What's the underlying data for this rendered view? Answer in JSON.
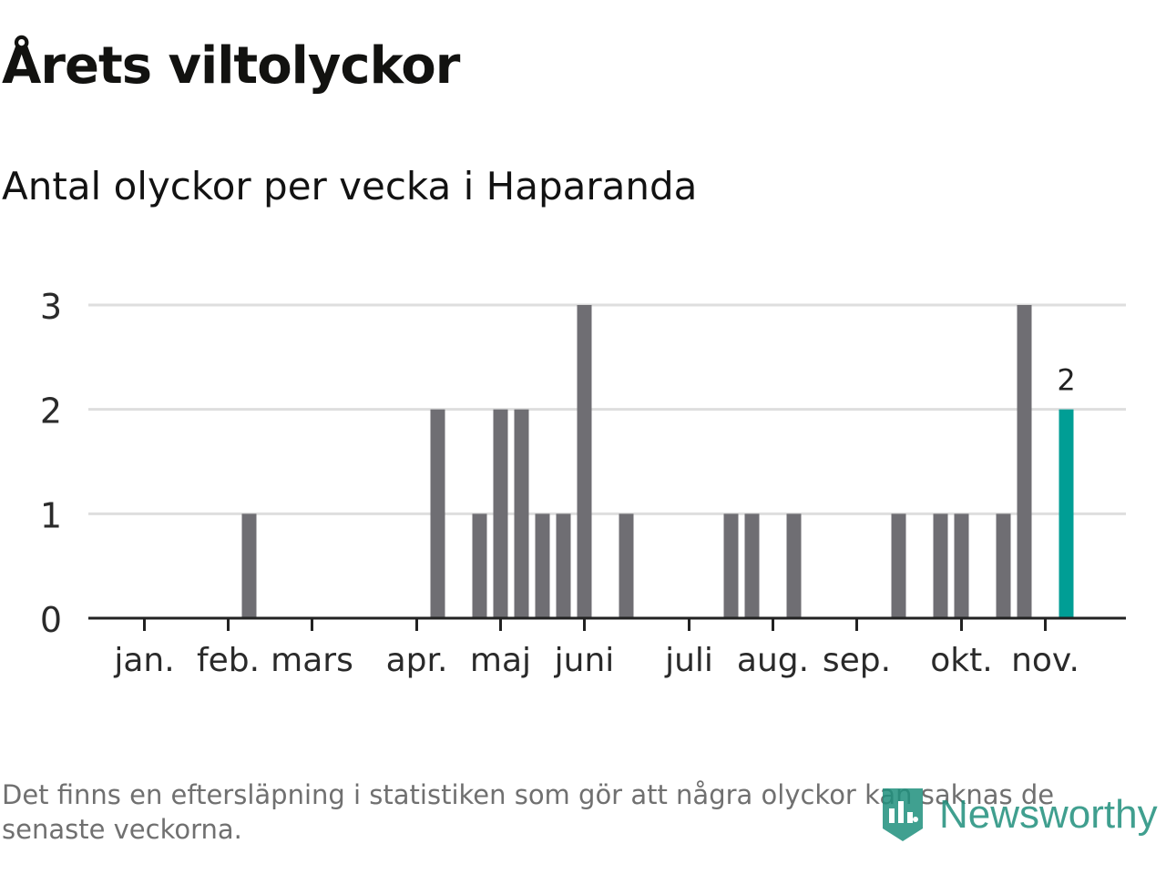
{
  "title": "Årets viltolyckor",
  "subtitle": "Antal olyckor per vecka i Haparanda",
  "footnote": "Det finns en eftersläpning i statistiken som gör att några olyckor kan saknas de senaste veckorna.",
  "brand": {
    "name": "Newsworthy",
    "icon": "newsworthy-bar-chart-logo-icon",
    "color": "#1f8f7c"
  },
  "colors": {
    "bar": "#6f6e73",
    "highlight": "#009e95",
    "grid": "#dedede",
    "axis": "#222222"
  },
  "chart_data": {
    "type": "bar",
    "title": "Årets viltolyckor",
    "subtitle": "Antal olyckor per vecka i Haparanda",
    "xlabel": "",
    "ylabel": "",
    "ylim": [
      0,
      3
    ],
    "yticks": [
      "0",
      "1",
      "2",
      "3"
    ],
    "grid": true,
    "x_unit": "vecka",
    "month_ticks": [
      {
        "label": "jan.",
        "week": 1
      },
      {
        "label": "feb.",
        "week": 5
      },
      {
        "label": "mars",
        "week": 9
      },
      {
        "label": "apr.",
        "week": 14
      },
      {
        "label": "maj",
        "week": 18
      },
      {
        "label": "juni",
        "week": 22
      },
      {
        "label": "juli",
        "week": 27
      },
      {
        "label": "aug.",
        "week": 31
      },
      {
        "label": "sep.",
        "week": 35
      },
      {
        "label": "okt.",
        "week": 40
      },
      {
        "label": "nov.",
        "week": 44
      }
    ],
    "weeks": [
      1,
      2,
      3,
      4,
      5,
      6,
      7,
      8,
      9,
      10,
      11,
      12,
      13,
      14,
      15,
      16,
      17,
      18,
      19,
      20,
      21,
      22,
      23,
      24,
      25,
      26,
      27,
      28,
      29,
      30,
      31,
      32,
      33,
      34,
      35,
      36,
      37,
      38,
      39,
      40,
      41,
      42,
      43,
      44,
      45
    ],
    "values": [
      0,
      0,
      0,
      0,
      0,
      1,
      0,
      0,
      0,
      0,
      0,
      0,
      0,
      0,
      2,
      0,
      1,
      2,
      2,
      1,
      1,
      3,
      0,
      1,
      0,
      0,
      0,
      0,
      1,
      1,
      0,
      1,
      0,
      0,
      0,
      0,
      1,
      0,
      1,
      1,
      0,
      1,
      3,
      0,
      2
    ],
    "highlight_week": 45,
    "highlight_label": "2"
  }
}
